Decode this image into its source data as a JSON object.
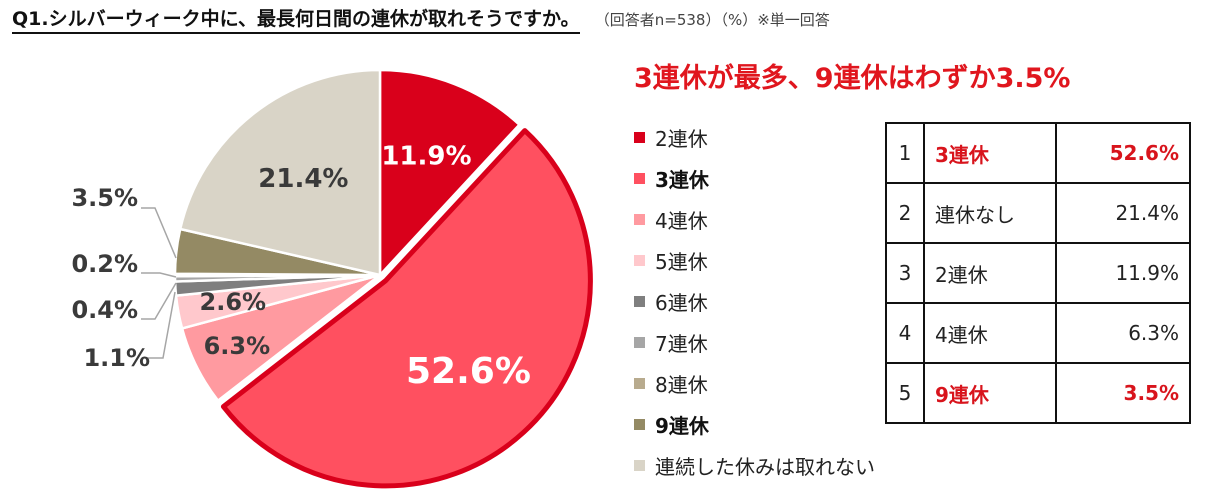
{
  "header": {
    "question": "Q1.シルバーウィーク中に、最長何日間の連休が取れそうですか。",
    "meta": "（回答者n=538）（%）※単一回答"
  },
  "headline": "3連休が最多、9連休はわずか3.5%",
  "chart_data": {
    "type": "pie",
    "start": "12 o'clock",
    "direction": "clockwise",
    "categories": [
      "2連休",
      "3連休",
      "4連休",
      "5連休",
      "6連休",
      "7連休",
      "8連休",
      "9連休",
      "連続した休みは取れない"
    ],
    "values": [
      11.9,
      52.6,
      6.3,
      2.6,
      1.1,
      0.4,
      0.2,
      3.5,
      21.4
    ],
    "labels": [
      "11.9%",
      "52.6%",
      "6.3%",
      "2.6%",
      "1.1%",
      "0.4%",
      "0.2%",
      "3.5%",
      "21.4%"
    ],
    "colors": [
      "#d9001b",
      "#ff5060",
      "#ff9aa0",
      "#ffc8cc",
      "#7f7f7f",
      "#a6a6a6",
      "#b8ab8e",
      "#948a64",
      "#d9d4c7"
    ],
    "highlight": [
      "3連休"
    ],
    "emphasized_legend": [
      "3連休",
      "9連休"
    ],
    "legend_position": "right"
  },
  "ranking": [
    {
      "rank": "1",
      "label": "3連休",
      "value": "52.6%",
      "highlight": true
    },
    {
      "rank": "2",
      "label": "連休なし",
      "value": "21.4%",
      "highlight": false
    },
    {
      "rank": "3",
      "label": "2連休",
      "value": "11.9%",
      "highlight": false
    },
    {
      "rank": "4",
      "label": "4連休",
      "value": "6.3%",
      "highlight": false
    },
    {
      "rank": "5",
      "label": "9連休",
      "value": "3.5%",
      "highlight": true
    }
  ]
}
